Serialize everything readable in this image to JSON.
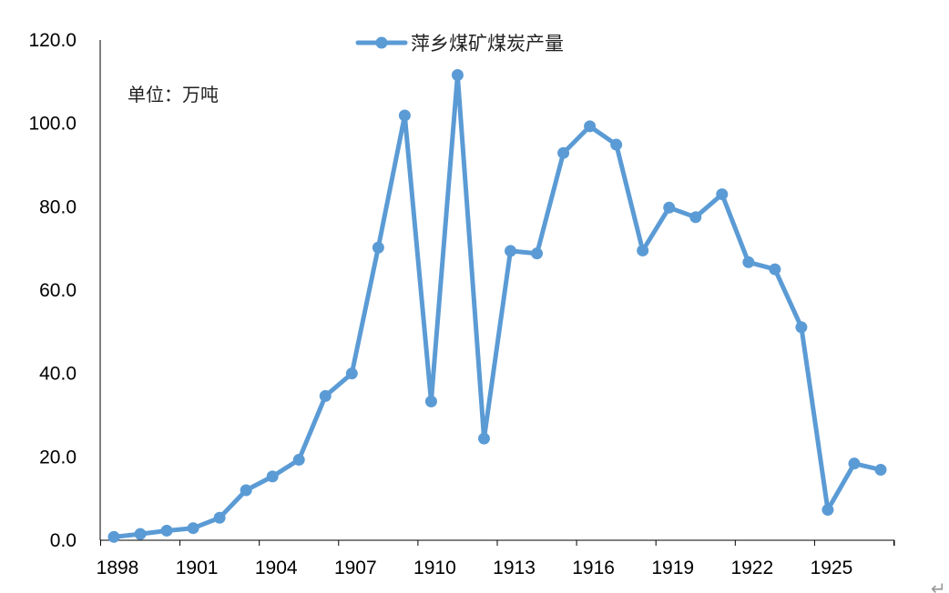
{
  "chart_data": {
    "type": "line",
    "title": "",
    "xlabel": "",
    "ylabel": "",
    "unit_label": "单位：万吨",
    "x": [
      1898,
      1899,
      1900,
      1901,
      1902,
      1903,
      1904,
      1905,
      1906,
      1907,
      1908,
      1909,
      1910,
      1911,
      1912,
      1913,
      1914,
      1915,
      1916,
      1917,
      1918,
      1919,
      1920,
      1921,
      1922,
      1923,
      1924,
      1925,
      1926,
      1927
    ],
    "series": [
      {
        "name": "萍乡煤矿煤炭产量",
        "color": "#5b9bd5",
        "values": [
          0.8,
          1.5,
          2.3,
          2.9,
          5.4,
          12.0,
          15.3,
          19.3,
          34.6,
          40.0,
          70.2,
          101.9,
          33.3,
          111.6,
          24.4,
          69.4,
          68.8,
          92.9,
          99.3,
          94.9,
          69.5,
          79.8,
          77.5,
          83.0,
          66.7,
          65.0,
          51.1,
          7.3,
          18.4,
          16.9
        ]
      }
    ],
    "x_tick_labels": [
      "1898",
      "1901",
      "1904",
      "1907",
      "1910",
      "1913",
      "1916",
      "1919",
      "1922",
      "1925"
    ],
    "y_tick_labels": [
      "0.0",
      "20.0",
      "40.0",
      "60.0",
      "80.0",
      "100.0",
      "120.0"
    ],
    "xlim": [
      1898,
      1928
    ],
    "ylim": [
      0,
      120
    ],
    "grid": false,
    "legend_position": "top-center"
  },
  "footer_mark": "↵"
}
